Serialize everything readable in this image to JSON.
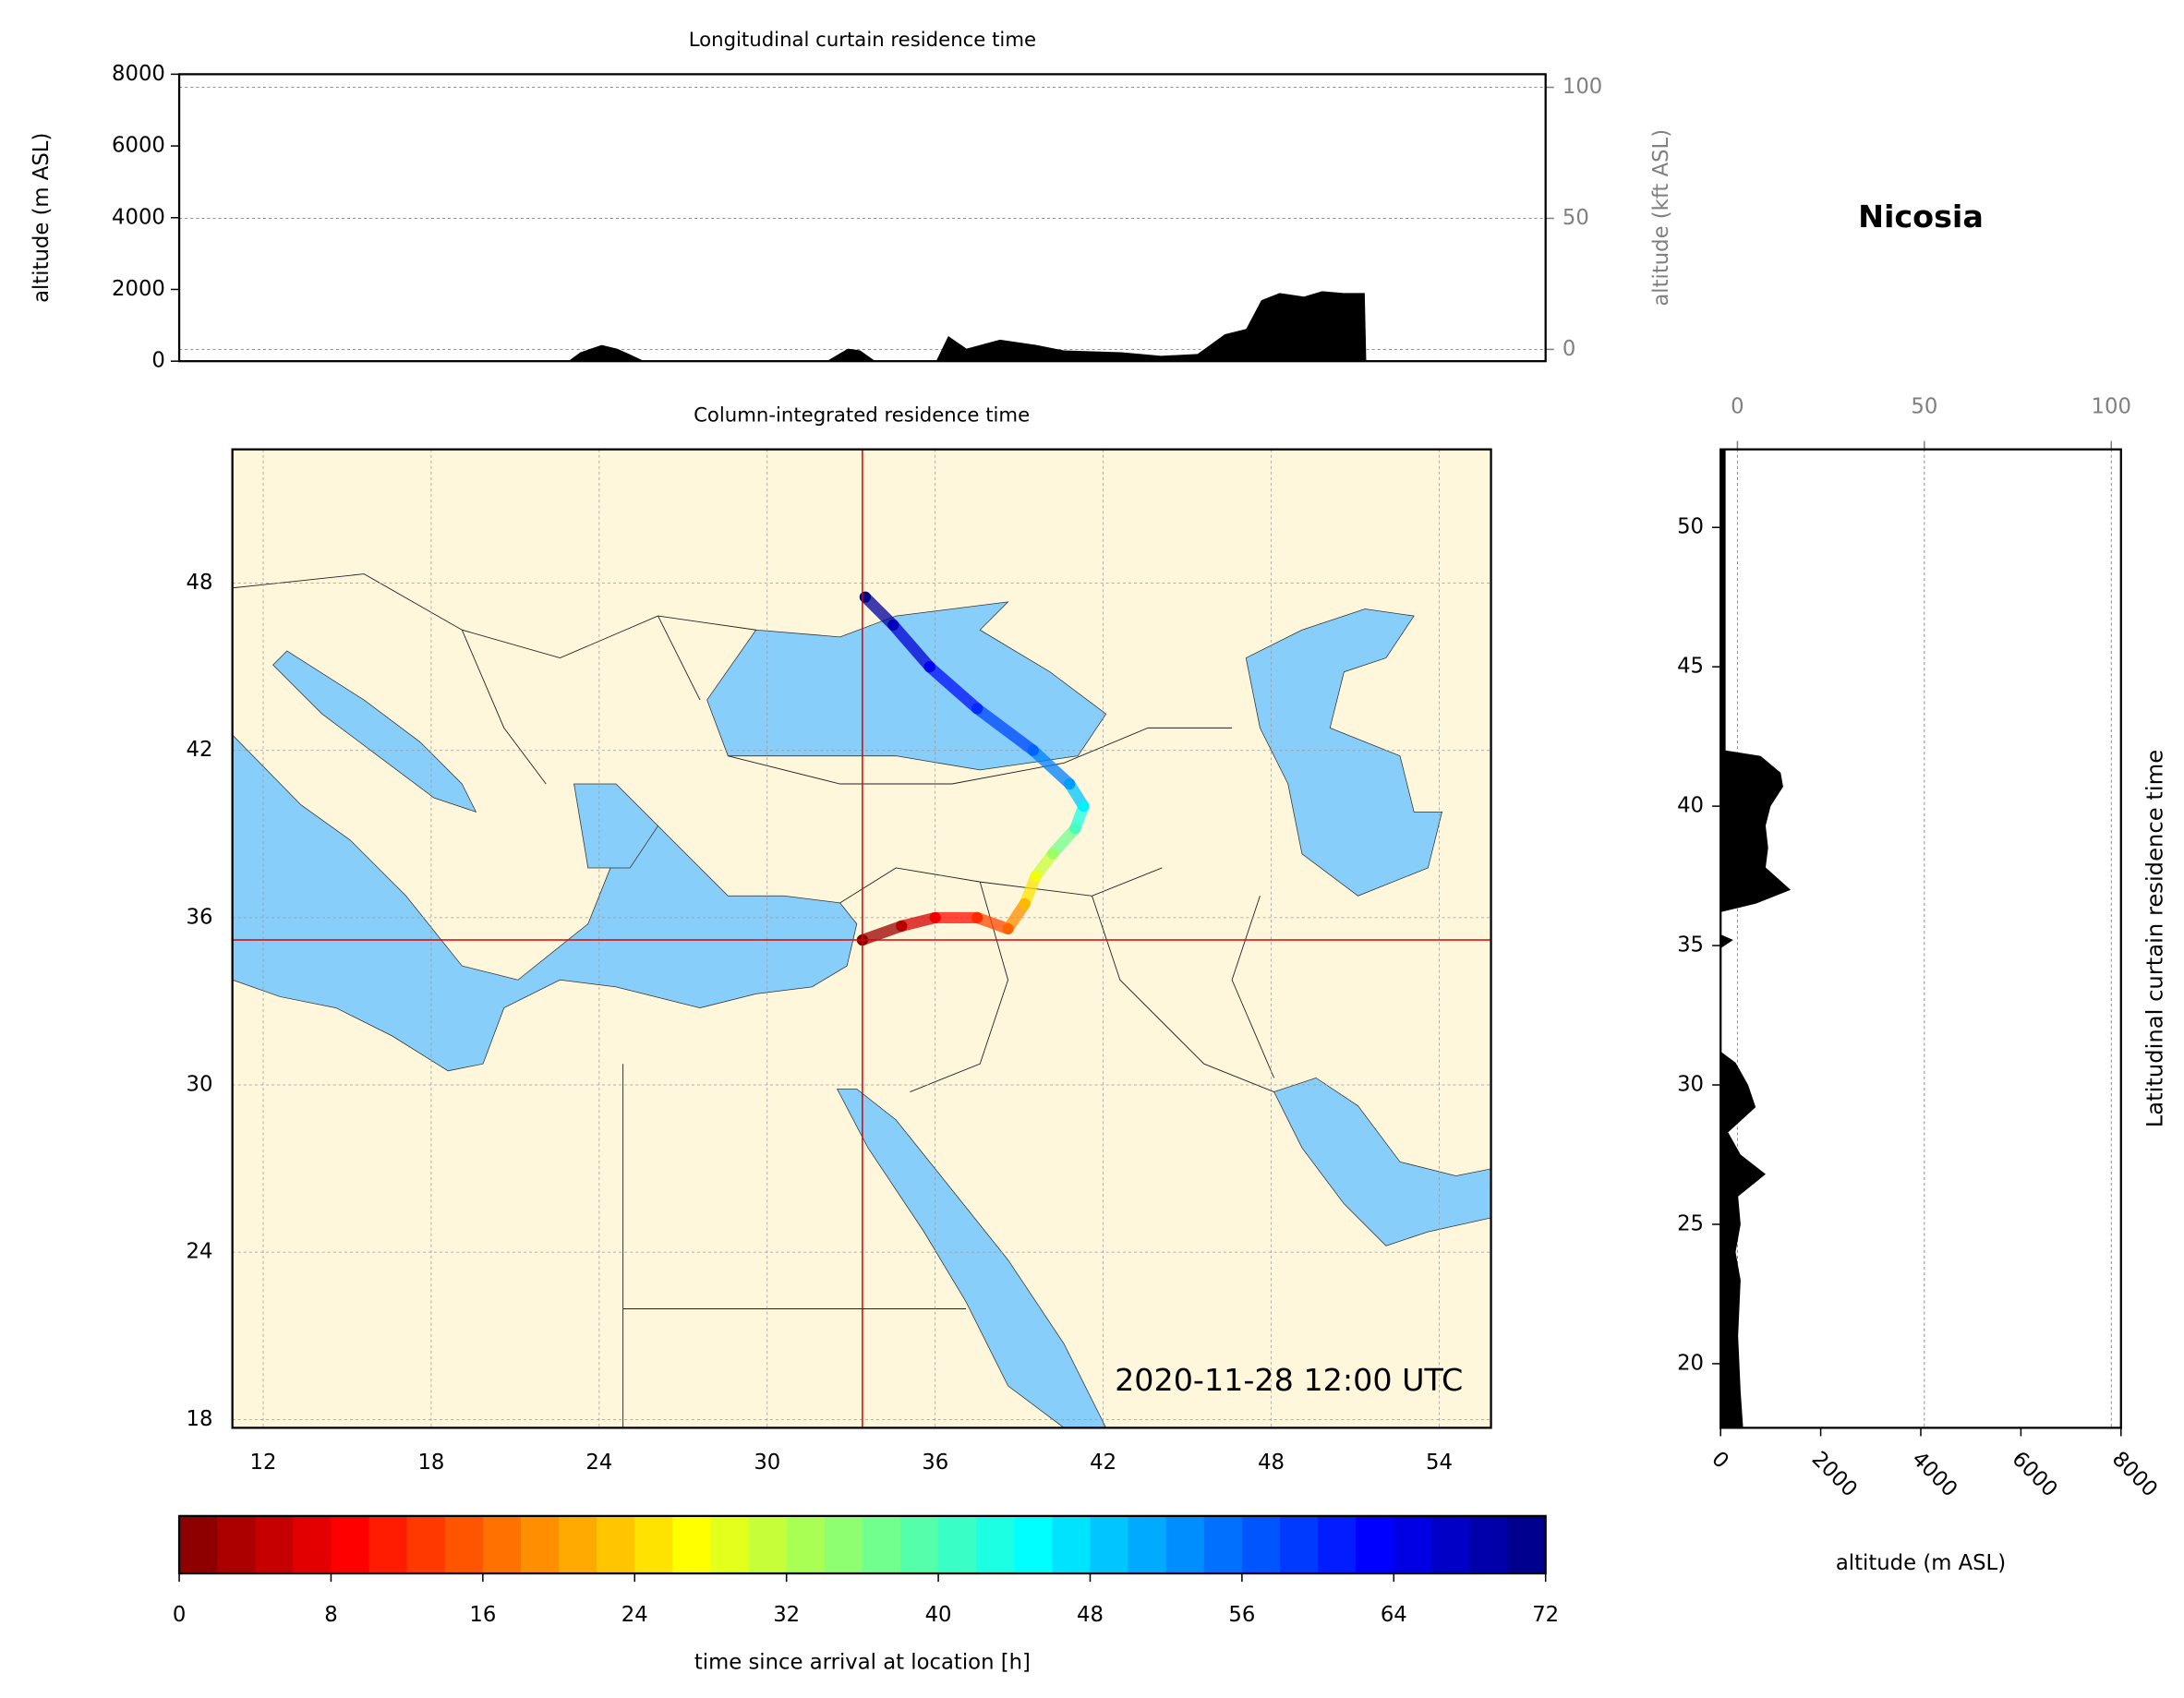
{
  "title": "Nicosia",
  "chart_data": [
    {
      "type": "area",
      "orientation": "vertical",
      "title": "Longitudinal curtain residence time",
      "y_label": "altitude (m ASL)",
      "y2_label": "altitude (kft ASL)",
      "xlim": [
        10.9,
        55.85
      ],
      "ylim": [
        0,
        8000
      ],
      "yticks": [
        0,
        2000,
        4000,
        6000,
        8000
      ],
      "y2lim": [
        -4.5,
        105
      ],
      "y2ticks": [
        0,
        50,
        100
      ],
      "color": "#000000",
      "x": [
        10.9,
        23.4,
        23.7,
        24.1,
        24.8,
        25.3,
        25.7,
        26.2,
        32.2,
        32.9,
        33.3,
        33.8,
        35.8,
        36.2,
        36.8,
        37.9,
        39.1,
        40.0,
        41.9,
        43.2,
        44.4,
        45.3,
        46.0,
        46.5,
        47.1,
        47.9,
        48.5,
        49.2,
        49.9,
        49.95,
        55.85
      ],
      "values": [
        0,
        0,
        0,
        250,
        450,
        350,
        200,
        0,
        0,
        350,
        300,
        0,
        0,
        700,
        350,
        600,
        450,
        300,
        250,
        150,
        200,
        750,
        900,
        1700,
        1900,
        1800,
        1950,
        1900,
        1900,
        0,
        0
      ]
    },
    {
      "type": "map",
      "title": "Column-integrated residence time",
      "xlim": [
        10.9,
        55.85
      ],
      "ylim": [
        17.7,
        52.8
      ],
      "xticks": [
        12,
        18,
        24,
        30,
        36,
        42,
        48,
        54
      ],
      "yticks": [
        18,
        24,
        30,
        36,
        42,
        48
      ],
      "annotation": "2020-11-28 12:00 UTC",
      "grid": true,
      "land_color": "#fff7dc",
      "sea_color": "#87cefa",
      "marker_color": "#e00000",
      "location": {
        "lon": 33.4,
        "lat": 35.2
      },
      "colormap": "jet_r",
      "clim": [
        0,
        72
      ],
      "trajectory": {
        "lon": [
          33.4,
          34.8,
          36.0,
          37.5,
          38.6,
          39.2,
          39.6,
          40.2,
          41.0,
          41.3,
          40.8,
          39.5,
          37.5,
          35.8,
          34.5,
          33.5
        ],
        "lat": [
          35.2,
          35.7,
          36.0,
          36.0,
          35.6,
          36.5,
          37.5,
          38.3,
          39.2,
          40.0,
          40.8,
          42.0,
          43.5,
          45.0,
          46.5,
          47.5
        ],
        "hours": [
          0,
          4,
          8,
          12,
          16,
          22,
          28,
          34,
          40,
          46,
          52,
          56,
          60,
          64,
          68,
          72
        ]
      }
    },
    {
      "type": "area",
      "orientation": "horizontal",
      "title": "Latitudinal curtain residence time",
      "x_label": "altitude (m ASL)",
      "xlim": [
        0,
        8000
      ],
      "xticks": [
        0,
        2000,
        4000,
        6000,
        8000
      ],
      "x2lim": [
        -4.5,
        102.6
      ],
      "x2ticks": [
        0,
        50,
        100
      ],
      "ylim": [
        17.7,
        52.8
      ],
      "yticks": [
        20,
        25,
        30,
        35,
        40,
        45,
        50
      ],
      "color": "#000000",
      "y": [
        17.7,
        19,
        21,
        23,
        24,
        25,
        26,
        26.8,
        27.5,
        28.3,
        29.2,
        30,
        30.8,
        31.2,
        34.9,
        35.2,
        35.4,
        36.2,
        36.5,
        37,
        37.8,
        38.5,
        39.3,
        40,
        40.7,
        41.2,
        41.8,
        42,
        52.8
      ],
      "values": [
        450,
        400,
        350,
        400,
        300,
        400,
        350,
        900,
        400,
        150,
        700,
        550,
        300,
        0,
        0,
        250,
        0,
        0,
        700,
        1400,
        900,
        950,
        900,
        1000,
        1250,
        1200,
        800,
        100,
        100
      ]
    },
    {
      "type": "colorbar",
      "label": "time since arrival at location [h]",
      "colormap": "jet_r",
      "xlim": [
        0,
        72
      ],
      "xticks": [
        0,
        8,
        16,
        24,
        32,
        40,
        48,
        56,
        64,
        72
      ]
    }
  ]
}
